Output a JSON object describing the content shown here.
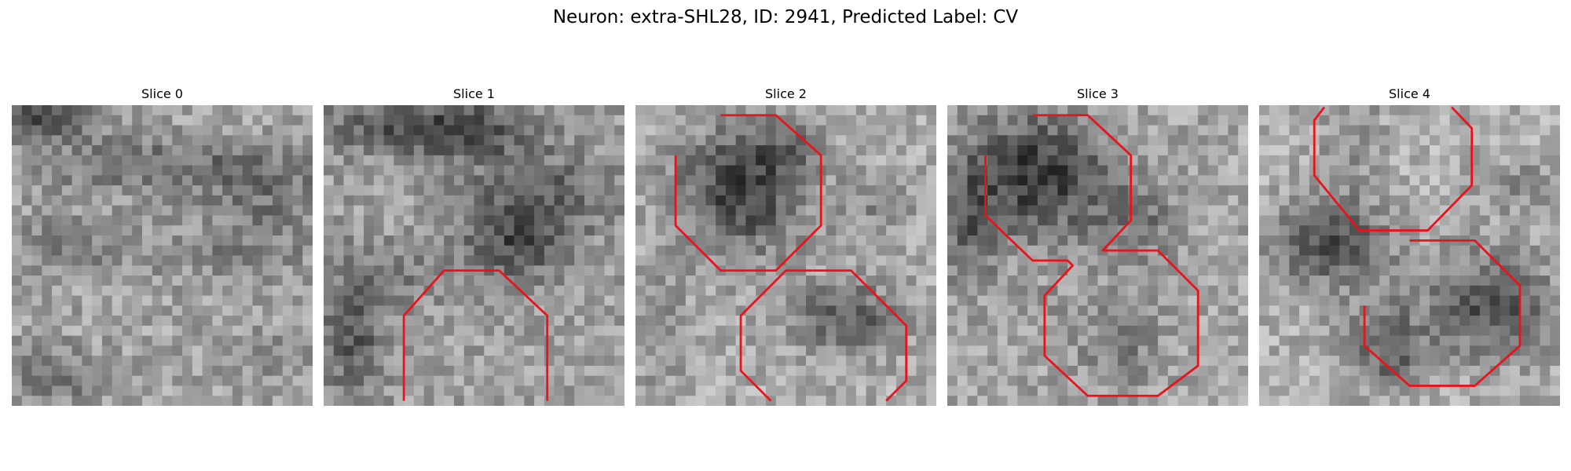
{
  "figure": {
    "title": "Neuron: extra-SHL28, ID: 2941, Predicted Label: CV",
    "contour_color": "#e8141c",
    "colormap": "gray",
    "panels": [
      {
        "title": "Slice 0"
      },
      {
        "title": "Slice 1"
      },
      {
        "title": "Slice 2"
      },
      {
        "title": "Slice 3"
      },
      {
        "title": "Slice 4"
      }
    ]
  }
}
